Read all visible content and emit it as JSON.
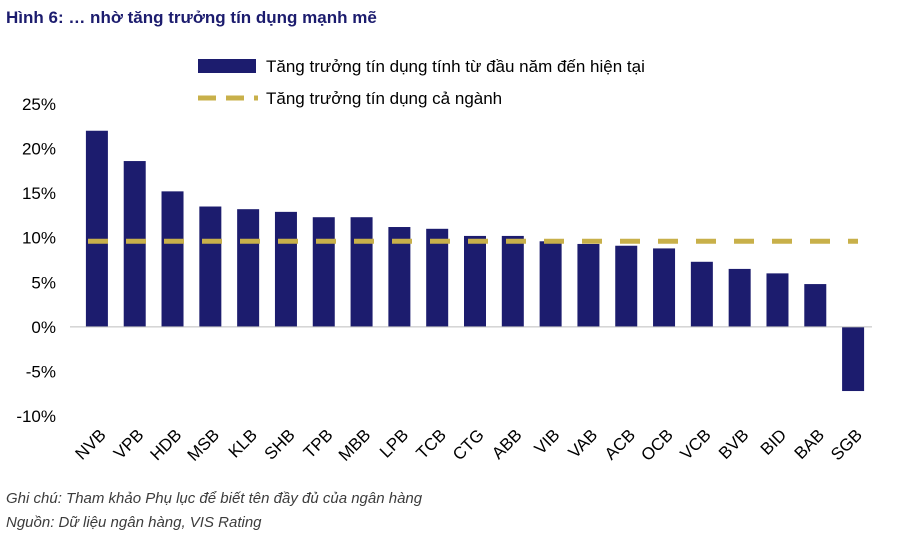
{
  "title": "Hình 6: … nhờ tăng trưởng tín dụng mạnh mẽ",
  "notes": {
    "note": "Ghi chú: Tham khảo Phụ lục để biết tên đầy đủ của ngân hàng",
    "source": "Nguồn: Dữ liệu ngân hàng, VIS Rating"
  },
  "chart_data": {
    "type": "bar",
    "categories": [
      "NVB",
      "VPB",
      "HDB",
      "MSB",
      "KLB",
      "SHB",
      "TPB",
      "MBB",
      "LPB",
      "TCB",
      "CTG",
      "ABB",
      "VIB",
      "VAB",
      "ACB",
      "OCB",
      "VCB",
      "BVB",
      "BID",
      "BAB",
      "SGB"
    ],
    "series": [
      {
        "name": "Tăng trưởng tín dụng tính từ đầu năm đến hiện tại",
        "type": "bar",
        "color": "#1c1c6e",
        "values": [
          22.0,
          18.6,
          15.2,
          13.5,
          13.2,
          12.9,
          12.3,
          12.3,
          11.2,
          11.0,
          10.2,
          10.2,
          9.6,
          9.3,
          9.1,
          8.8,
          7.3,
          6.5,
          6.0,
          4.8,
          -7.2
        ]
      },
      {
        "name": "Tăng trưởng tín dụng cả ngành",
        "type": "dashed-line",
        "color": "#c8b04a",
        "value": 9.6
      }
    ],
    "ylim": [
      -10,
      25
    ],
    "yticks": [
      25,
      20,
      15,
      10,
      5,
      0,
      -5,
      -10
    ],
    "ytick_labels": [
      "25%",
      "20%",
      "15%",
      "10%",
      "5%",
      "0%",
      "-5%",
      "-10%"
    ],
    "legend_position": "top"
  }
}
